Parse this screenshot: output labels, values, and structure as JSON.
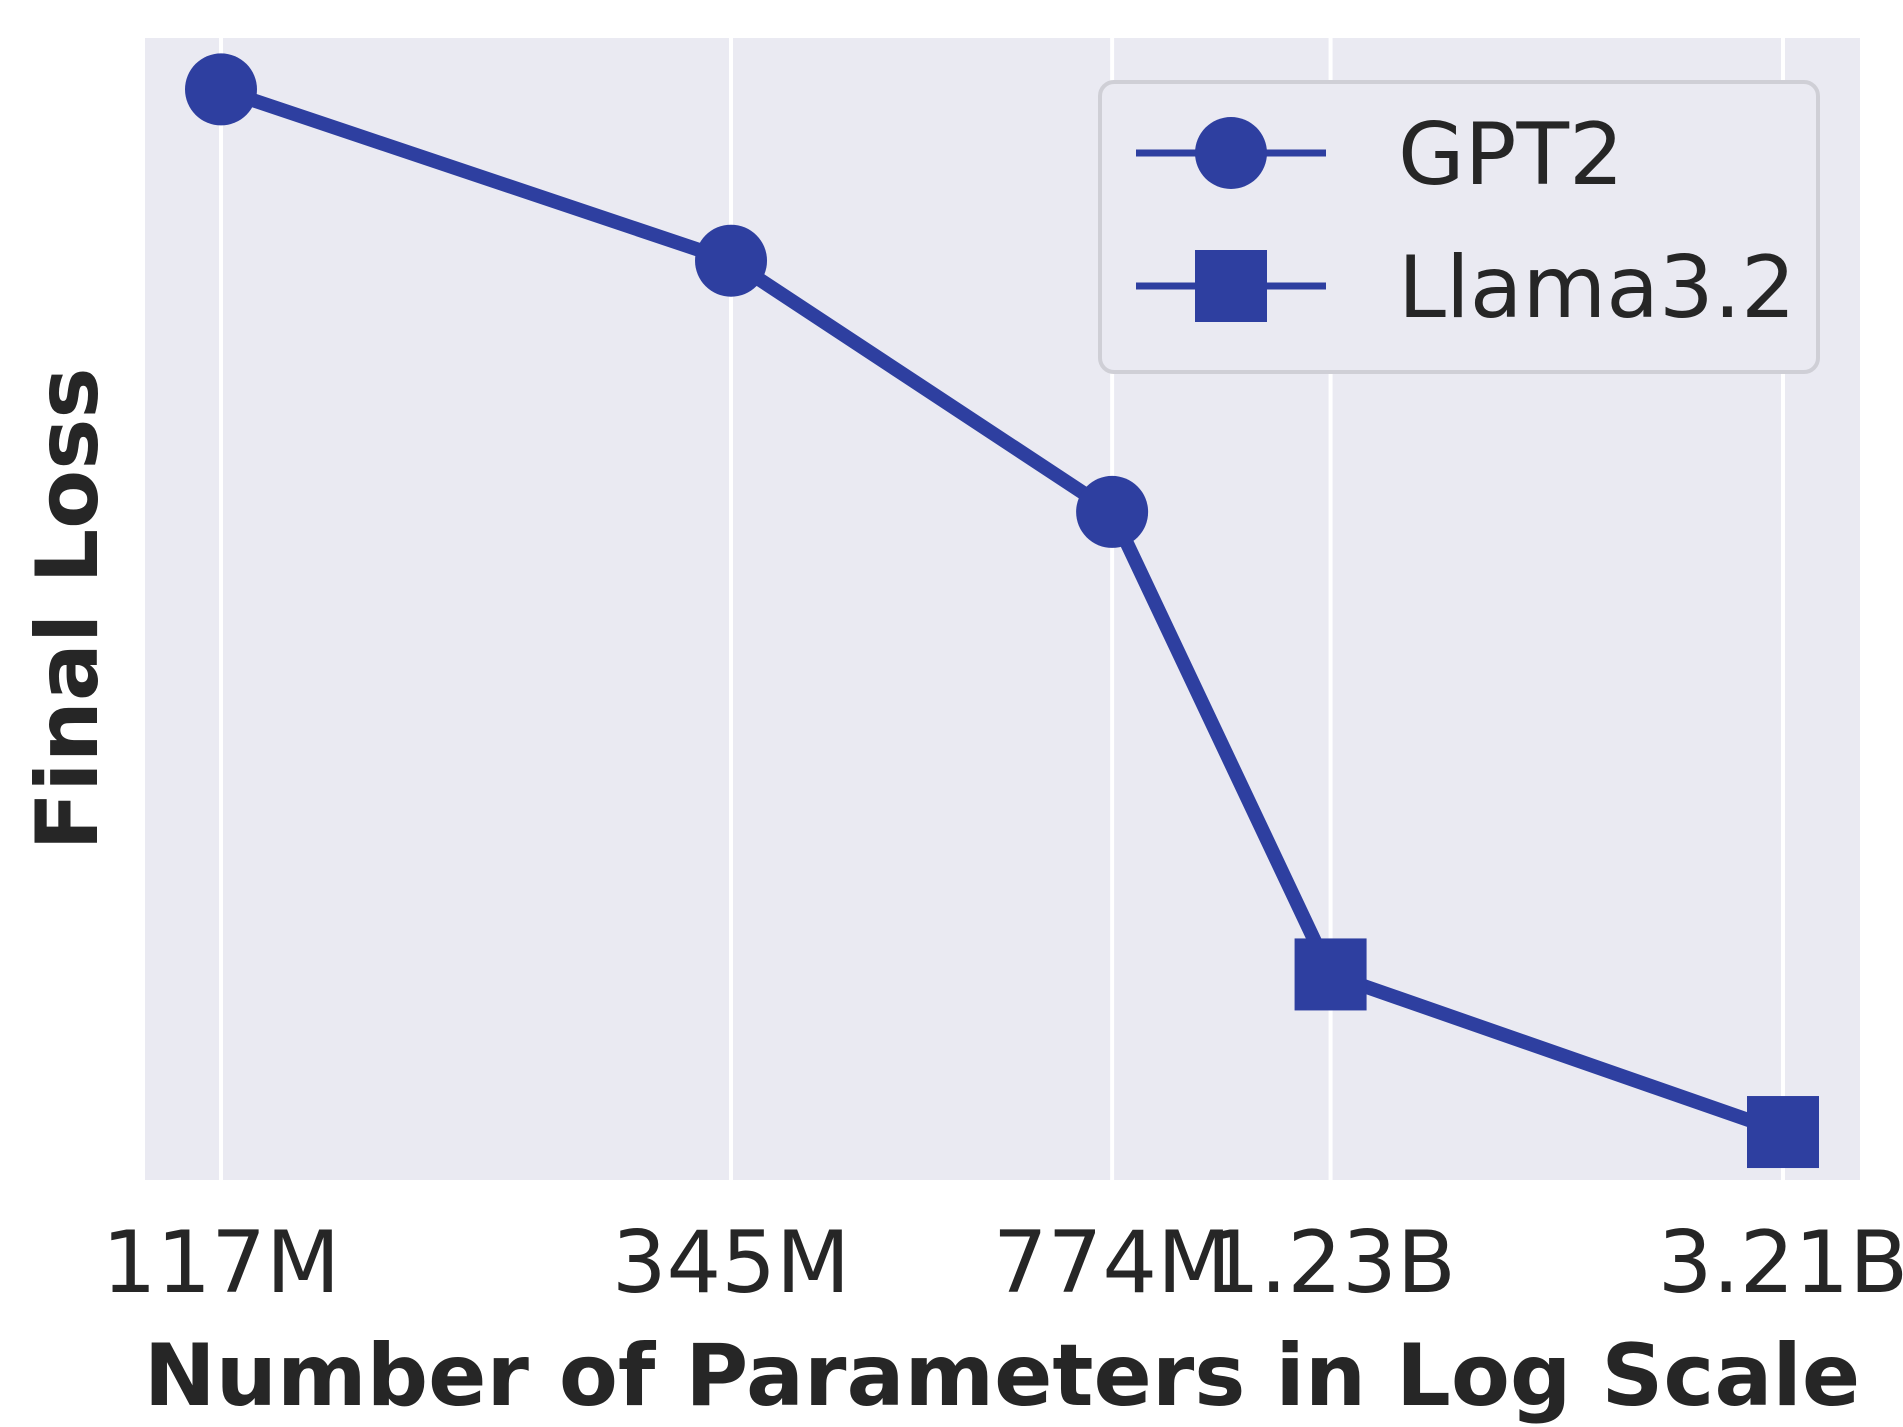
{
  "chart_data": {
    "type": "line",
    "xlabel": "Number of Parameters in Log Scale",
    "ylabel": "Final Loss",
    "x_scale": "log",
    "x_ticks": [
      {
        "label": "117M",
        "value": 117000000
      },
      {
        "label": "345M",
        "value": 345000000
      },
      {
        "label": "774M",
        "value": 774000000
      },
      {
        "label": "1.23B",
        "value": 1230000000
      },
      {
        "label": "3.21B",
        "value": 3210000000
      }
    ],
    "y_ticks_shown": false,
    "grid": "vertical",
    "legend_position": "top-right",
    "series": [
      {
        "name": "GPT2",
        "marker": "circle",
        "x": [
          117000000,
          345000000,
          774000000
        ],
        "y": [
          0.955,
          0.805,
          0.585
        ]
      },
      {
        "name": "Llama3.2",
        "marker": "square",
        "x": [
          1230000000,
          3210000000
        ],
        "y": [
          0.18,
          0.042
        ]
      }
    ],
    "connected_line": true,
    "colors": {
      "line": "#2e3fa0",
      "plot_background": "#eaeaf2",
      "grid": "#ffffff",
      "text": "#262626"
    }
  }
}
